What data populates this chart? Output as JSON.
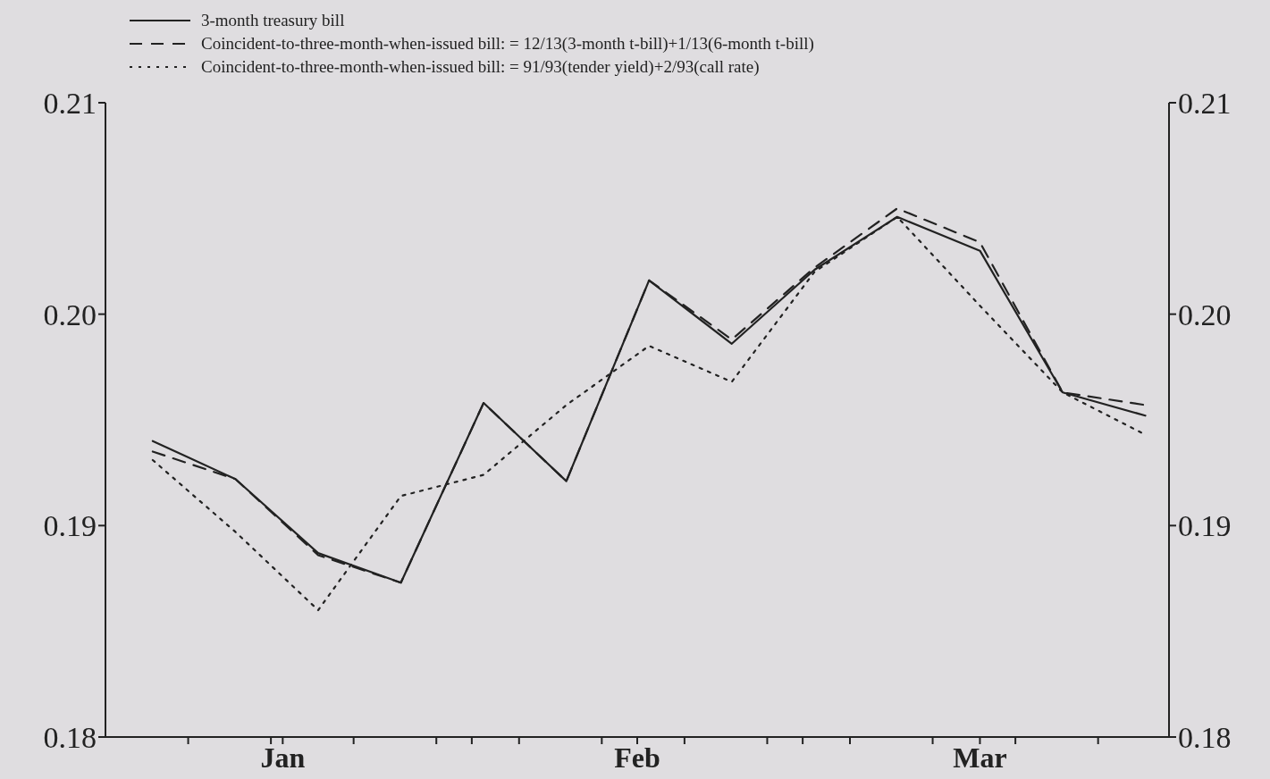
{
  "chart_data": {
    "type": "line",
    "x": [
      "--01-05",
      "--01-12",
      "--01-19",
      "--01-26",
      "--02-02",
      "--02-09",
      "--02-16",
      "--02-23",
      "--03-02",
      "--03-09",
      "--03-16",
      "--03-23",
      "--03-30"
    ],
    "series": [
      {
        "name": "3-month treasury bill",
        "color": "#222222",
        "line_style": "solid",
        "values": [
          0.194,
          0.1922,
          0.1887,
          0.1873,
          0.1958,
          0.1921,
          0.2016,
          0.1986,
          0.2021,
          0.2046,
          0.203,
          0.1963,
          0.1952
        ]
      },
      {
        "name": "Coincident-to-three-month-when-issued bill: = 12/13(3-month t-bill)+1/13(6-month t-bill)",
        "color": "#222222",
        "line_style": "dashed",
        "values": [
          0.1935,
          0.1922,
          0.1886,
          0.1873,
          0.1958,
          0.1921,
          0.2016,
          0.1988,
          0.2022,
          0.205,
          0.2034,
          0.1963,
          0.1957
        ]
      },
      {
        "name": "Coincident-to-three-month-when-issued bill: = 91/93(tender yield)+2/93(call rate)",
        "color": "#222222",
        "line_style": "dotted",
        "values": [
          0.1931,
          0.1897,
          0.186,
          0.1914,
          0.1924,
          0.1957,
          0.1985,
          0.1968,
          0.202,
          0.2046,
          0.2004,
          0.1963,
          0.1943
        ]
      }
    ],
    "xlim": [
      "--01-01",
      "--04-01"
    ],
    "xticks": [
      {
        "value": "--01-08",
        "label": null
      },
      {
        "value": "--01-15",
        "label": null
      },
      {
        "value": "--01-16",
        "label": "Jan"
      },
      {
        "value": "--01-22",
        "label": null
      },
      {
        "value": "--01-29",
        "label": null
      },
      {
        "value": "--02-01",
        "label": null
      },
      {
        "value": "--02-05",
        "label": null
      },
      {
        "value": "--02-12",
        "label": null
      },
      {
        "value": "--02-15",
        "label": "Feb"
      },
      {
        "value": "--02-19",
        "label": null
      },
      {
        "value": "--02-26",
        "label": null
      },
      {
        "value": "--03-01",
        "label": null
      },
      {
        "value": "--03-05",
        "label": null
      },
      {
        "value": "--03-12",
        "label": null
      },
      {
        "value": "--03-16",
        "label": "Mar"
      },
      {
        "value": "--03-19",
        "label": null
      },
      {
        "value": "--03-26",
        "label": null
      }
    ],
    "ylim": [
      0.18,
      0.21
    ],
    "yticks": [
      0.18,
      0.19,
      {
        "value": 0.2,
        "label": "0.20"
      },
      0.21
    ],
    "y2lim": [
      0.18,
      0.21
    ],
    "y2ticks": [
      0.18,
      0.19,
      {
        "value": 0.2,
        "label": "0.20"
      },
      0.21
    ],
    "grid": false,
    "legend": "top left",
    "marker": "none"
  }
}
